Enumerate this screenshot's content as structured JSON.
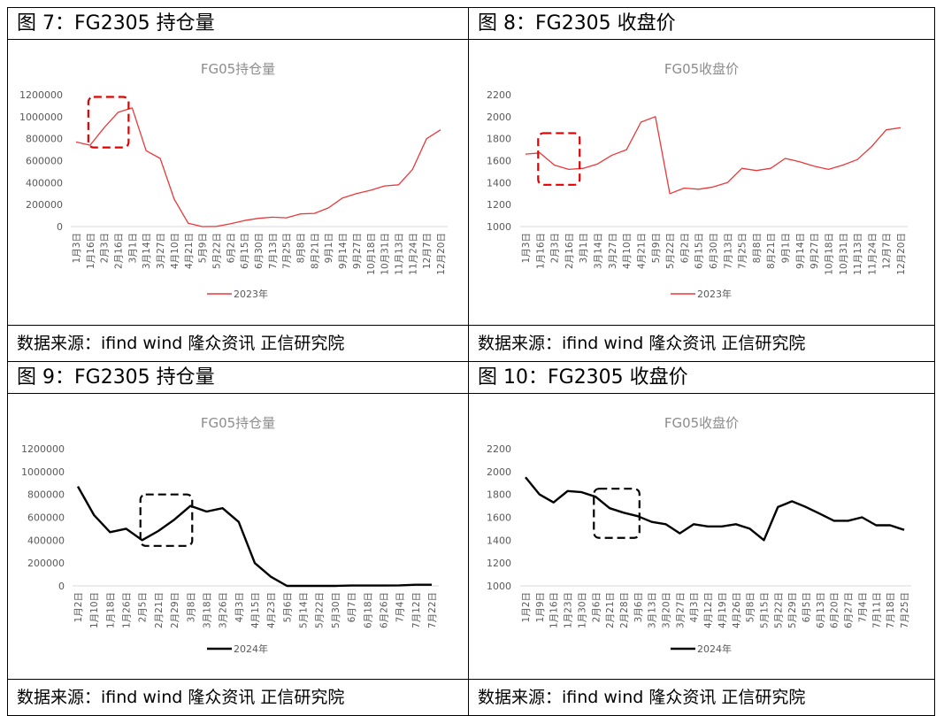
{
  "figures": [
    {
      "caption": "图 7：FG2305 持仓量",
      "source": "数据来源：ifind wind  隆众资讯  正信研究院"
    },
    {
      "caption": "图 8：FG2305 收盘价",
      "source": "数据来源：ifind wind  隆众资讯  正信研究院"
    },
    {
      "caption": "图 9：FG2305 持仓量",
      "source": "数据来源：ifind wind  隆众资讯  正信研究院"
    },
    {
      "caption": "图 10：FG2305 收盘价",
      "source": "数据来源：ifind wind  隆众资讯  正信研究院"
    }
  ],
  "chart_data": [
    {
      "type": "line",
      "title": "FG05持仓量",
      "color": "#e8393b",
      "ylim": [
        0,
        1200000
      ],
      "yticks": [
        0,
        200000,
        400000,
        600000,
        800000,
        1000000,
        1200000
      ],
      "categories": [
        "1月3日",
        "1月16日",
        "2月3日",
        "2月16日",
        "3月1日",
        "3月14日",
        "3月27日",
        "4月10日",
        "4月21日",
        "5月9日",
        "5月22日",
        "6月2日",
        "6月15日",
        "6月30日",
        "7月13日",
        "7月25日",
        "8月8日",
        "8月21日",
        "9月1日",
        "9月14日",
        "9月27日",
        "10月18日",
        "10月31日",
        "11月13日",
        "11月24日",
        "12月7日",
        "12月20日"
      ],
      "series": [
        {
          "name": "2023年",
          "values": [
            770000,
            740000,
            900000,
            1040000,
            1080000,
            690000,
            620000,
            250000,
            30000,
            0,
            2000,
            25000,
            55000,
            75000,
            85000,
            80000,
            115000,
            120000,
            170000,
            260000,
            300000,
            330000,
            370000,
            380000,
            520000,
            800000,
            880000
          ]
        }
      ],
      "highlight": {
        "from": "1月16日",
        "to": "3月1日",
        "ylim": [
          720000,
          1180000
        ],
        "color": "#e00000"
      },
      "grid": false,
      "legend": "bottom"
    },
    {
      "type": "line",
      "title": "FG05收盘价",
      "color": "#e8393b",
      "ylim": [
        1000,
        2200
      ],
      "yticks": [
        1000,
        1200,
        1400,
        1600,
        1800,
        2000,
        2200
      ],
      "categories": [
        "1月3日",
        "1月16日",
        "2月3日",
        "2月16日",
        "3月1日",
        "3月14日",
        "3月27日",
        "4月10日",
        "4月21日",
        "5月9日",
        "5月22日",
        "6月2日",
        "6月15日",
        "6月30日",
        "7月13日",
        "7月25日",
        "8月8日",
        "8月21日",
        "9月1日",
        "9月14日",
        "9月27日",
        "10月18日",
        "10月31日",
        "11月13日",
        "11月24日",
        "12月7日",
        "12月20日"
      ],
      "series": [
        {
          "name": "2023年",
          "values": [
            1660,
            1670,
            1560,
            1520,
            1530,
            1570,
            1650,
            1700,
            1950,
            2000,
            1300,
            1350,
            1340,
            1360,
            1400,
            1530,
            1510,
            1530,
            1620,
            1590,
            1550,
            1520,
            1560,
            1610,
            1730,
            1880,
            1900
          ]
        }
      ],
      "highlight": {
        "from": "1月16日",
        "to": "3月1日",
        "ylim": [
          1380,
          1850
        ],
        "color": "#e00000"
      },
      "grid": false,
      "legend": "bottom"
    },
    {
      "type": "line",
      "title": "FG05持仓量",
      "color": "#000000",
      "ylim": [
        0,
        1200000
      ],
      "yticks": [
        0,
        200000,
        400000,
        600000,
        800000,
        1000000,
        1200000
      ],
      "categories": [
        "1月2日",
        "1月10日",
        "1月18日",
        "1月26日",
        "2月5日",
        "2月21日",
        "2月29日",
        "3月8日",
        "3月18日",
        "3月26日",
        "4月3日",
        "4月15日",
        "4月23日",
        "5月6日",
        "5月14日",
        "5月22日",
        "5月30日",
        "6月7日",
        "6月18日",
        "6月26日",
        "7月4日",
        "7月12日",
        "7月22日"
      ],
      "series": [
        {
          "name": "2024年",
          "values": [
            870000,
            620000,
            470000,
            500000,
            400000,
            480000,
            580000,
            700000,
            650000,
            680000,
            560000,
            200000,
            80000,
            0,
            0,
            0,
            0,
            3000,
            3000,
            3000,
            5000,
            10000,
            10000
          ]
        }
      ],
      "highlight": {
        "from": "2月5日",
        "to": "3月8日",
        "ylim": [
          350000,
          800000
        ],
        "color": "#000000"
      },
      "grid": false,
      "legend": "bottom"
    },
    {
      "type": "line",
      "title": "FG05收盘价",
      "color": "#000000",
      "ylim": [
        1000,
        2200
      ],
      "yticks": [
        1000,
        1200,
        1400,
        1600,
        1800,
        2000,
        2200
      ],
      "categories": [
        "1月2日",
        "1月9日",
        "1月16日",
        "1月23日",
        "1月30日",
        "2月6日",
        "2月21日",
        "2月28日",
        "3月6日",
        "3月13日",
        "3月20日",
        "3月27日",
        "4月3日",
        "4月12日",
        "4月19日",
        "4月26日",
        "5月8日",
        "5月15日",
        "5月22日",
        "5月29日",
        "6月5日",
        "6月13日",
        "6月20日",
        "6月27日",
        "7月4日",
        "7月11日",
        "7月18日",
        "7月25日"
      ],
      "series": [
        {
          "name": "2024年",
          "values": [
            1950,
            1800,
            1730,
            1830,
            1820,
            1780,
            1680,
            1640,
            1610,
            1560,
            1540,
            1460,
            1540,
            1520,
            1520,
            1540,
            1500,
            1400,
            1690,
            1740,
            1690,
            1630,
            1570,
            1570,
            1600,
            1530,
            1530,
            1490
          ]
        }
      ],
      "highlight": {
        "from": "2月6日",
        "to": "3月6日",
        "ylim": [
          1420,
          1850
        ],
        "color": "#000000"
      },
      "grid": false,
      "legend": "bottom"
    }
  ]
}
